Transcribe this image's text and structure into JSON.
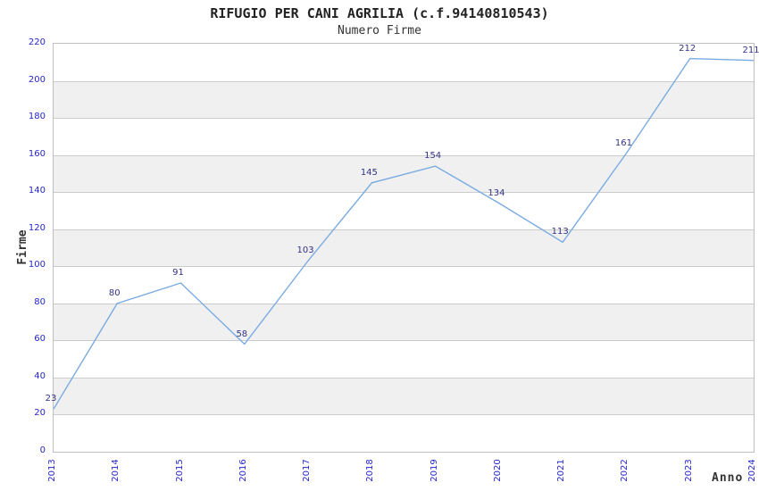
{
  "chart_data": {
    "type": "line",
    "title": "RIFUGIO PER CANI AGRILIA (c.f.94140810543)",
    "subtitle": "Numero Firme",
    "xlabel": "Anno",
    "ylabel": "Firme",
    "categories": [
      "2013",
      "2014",
      "2015",
      "2016",
      "2017",
      "2018",
      "2019",
      "2020",
      "2021",
      "2022",
      "2023",
      "2024"
    ],
    "values": [
      23,
      80,
      91,
      58,
      103,
      145,
      154,
      134,
      113,
      161,
      212,
      211
    ],
    "ylim": [
      0,
      220
    ],
    "ytick_step": 20,
    "grid": "horizontal",
    "alternating_bands": true,
    "legend": "none",
    "point_labels_visible": true
  },
  "colors": {
    "line": "#79abe2",
    "point_label": "#333388",
    "tick_label": "#2525cd",
    "band_gray": "#f0f0f0",
    "band_white": "#ffffff",
    "gridline": "#cccccc",
    "plot_border": "#c0c0c0",
    "title_text": "#222222",
    "axis_title": "#333333"
  }
}
